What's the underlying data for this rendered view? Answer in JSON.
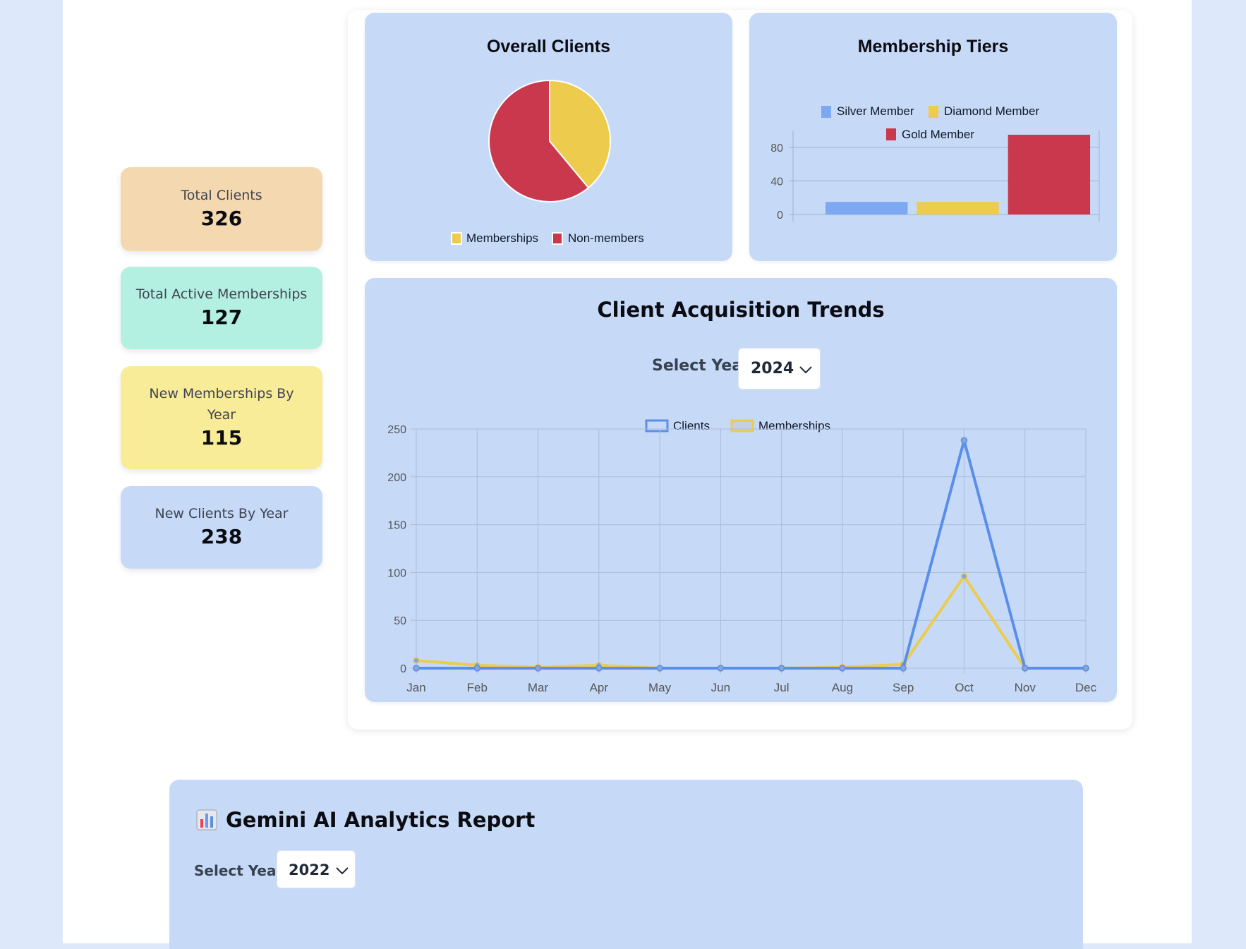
{
  "stats": {
    "total_clients": {
      "label": "Total Clients",
      "value": "326"
    },
    "active_memberships": {
      "label": "Total Active Memberships",
      "value": "127"
    },
    "new_memberships": {
      "label": "New Memberships By Year",
      "value": "115"
    },
    "new_clients": {
      "label": "New Clients By Year",
      "value": "238"
    }
  },
  "pie": {
    "title": "Overall Clients",
    "legend": [
      "Memberships",
      "Non-members"
    ]
  },
  "bars": {
    "title": "Membership Tiers",
    "legend": [
      "Silver Member",
      "Diamond Member",
      "Gold Member"
    ]
  },
  "trend": {
    "title": "Client Acquisition Trends",
    "select_label": "Select Year:",
    "select_value": "2024",
    "legend": [
      "Clients",
      "Memberships"
    ]
  },
  "gemini": {
    "title": "Gemini AI Analytics Report",
    "select_label": "Select Year:",
    "select_value": "2022",
    "icon": "bar-chart-icon"
  },
  "colors": {
    "gold": "#ea4258",
    "yellow": "#edcb4c",
    "red": "#c9384d",
    "blue": "#5b8ee8",
    "silver": "#7ea9f2",
    "card_bg": "#c6daf8"
  },
  "chart_data": [
    {
      "type": "pie",
      "title": "Overall Clients",
      "categories": [
        "Memberships",
        "Non-members"
      ],
      "values": [
        127,
        199
      ],
      "colors": [
        "#edcb4c",
        "#c9384d"
      ],
      "legend": "bottom"
    },
    {
      "type": "bar",
      "title": "Membership Tiers",
      "series": [
        {
          "name": "Silver Member",
          "values": [
            15
          ]
        },
        {
          "name": "Diamond Member",
          "values": [
            15
          ]
        },
        {
          "name": "Gold Member",
          "values": [
            95
          ]
        }
      ],
      "yticks": [
        "0",
        "40",
        "80"
      ],
      "ylim": [
        0,
        100
      ],
      "grid": true,
      "legend": "top"
    },
    {
      "type": "line",
      "title": "Client Acquisition Trends",
      "categories": [
        "Jan",
        "Feb",
        "Mar",
        "Apr",
        "May",
        "Jun",
        "Jul",
        "Aug",
        "Sep",
        "Oct",
        "Nov",
        "Dec"
      ],
      "series": [
        {
          "name": "Clients",
          "values": [
            0,
            0,
            0,
            0,
            0,
            0,
            0,
            0,
            0,
            238,
            0,
            0
          ]
        },
        {
          "name": "Memberships",
          "values": [
            8,
            3,
            1,
            3,
            0,
            0,
            0,
            1,
            4,
            96,
            0,
            0
          ]
        }
      ],
      "yticks": [
        "0",
        "50",
        "100",
        "150",
        "200",
        "250"
      ],
      "ylim": [
        0,
        250
      ],
      "grid": true,
      "legend": "top"
    }
  ]
}
